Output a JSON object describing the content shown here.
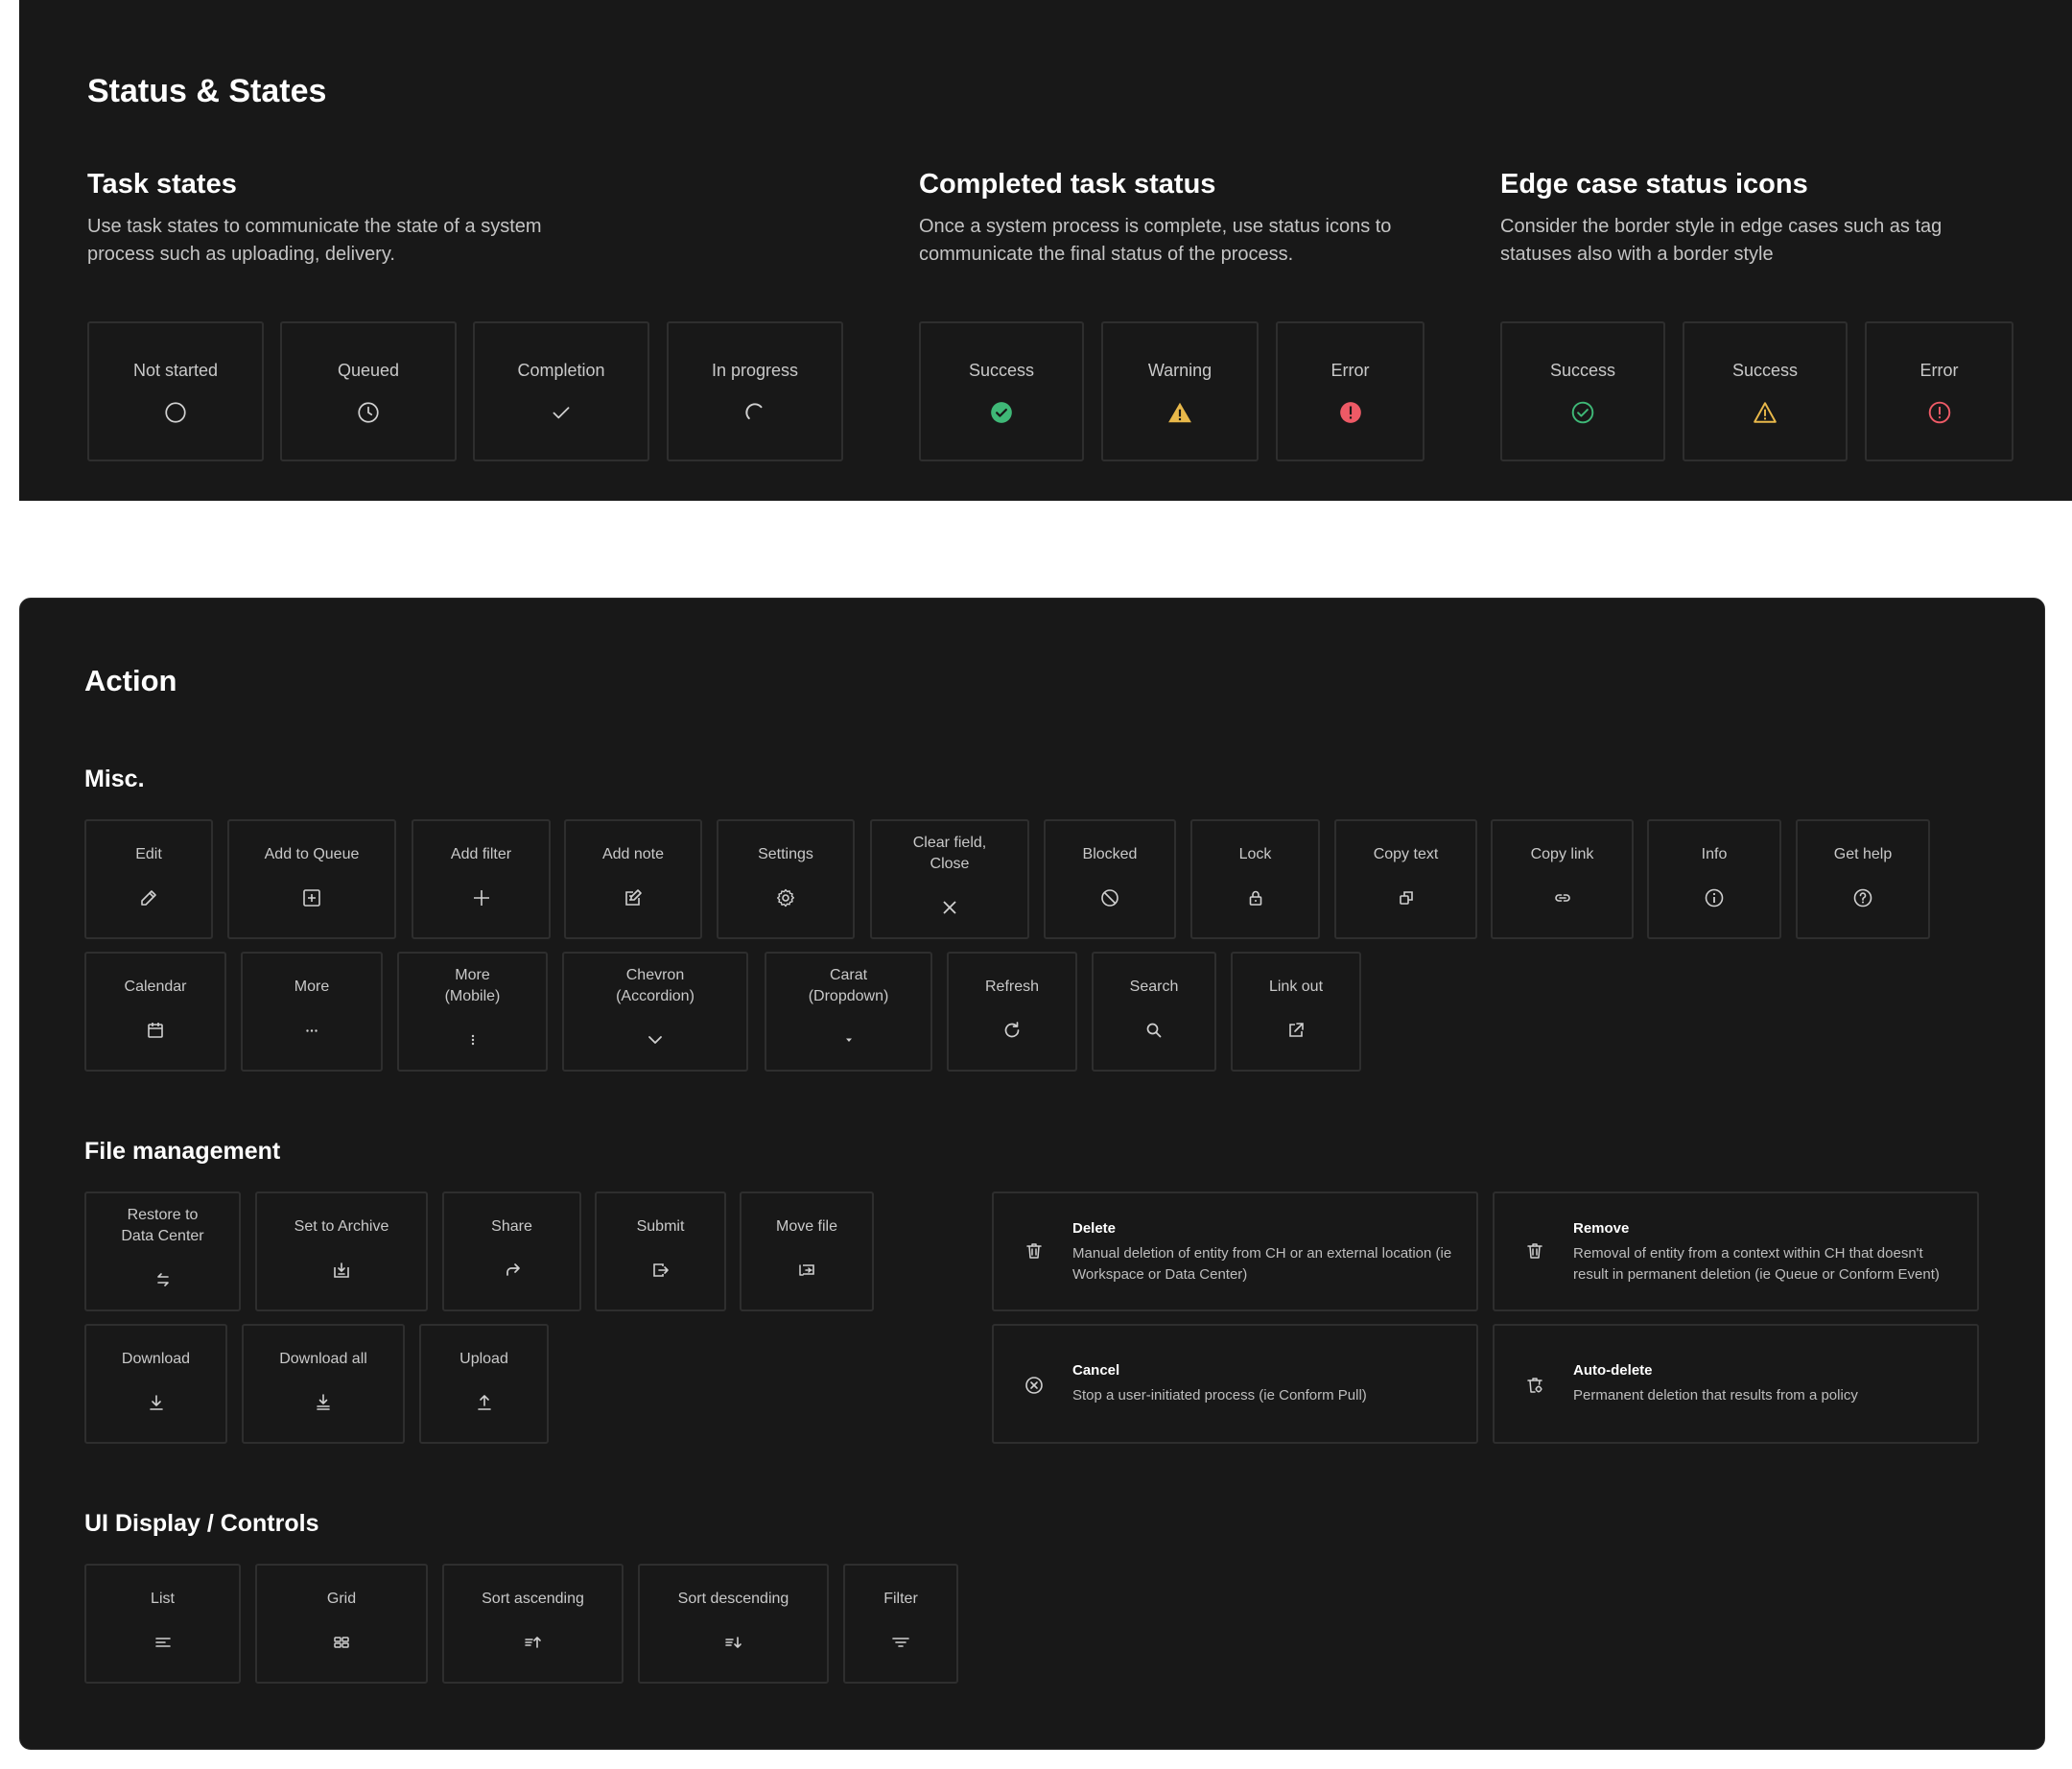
{
  "status": {
    "title": "Status & States",
    "task_states": {
      "heading": "Task states",
      "description": "Use task states to communicate the state of a system process such as uploading, delivery.",
      "items": [
        {
          "label": "Not started",
          "icon": "empty-circle-icon"
        },
        {
          "label": "Queued",
          "icon": "clock-icon"
        },
        {
          "label": "Completion",
          "icon": "check-icon"
        },
        {
          "label": "In progress",
          "icon": "spinner-icon"
        }
      ]
    },
    "completed": {
      "heading": "Completed task status",
      "description": "Once a system process is complete, use status icons to communicate the final status of the process.",
      "items": [
        {
          "label": "Success",
          "icon": "success-filled-icon",
          "color": "#3fb877"
        },
        {
          "label": "Warning",
          "icon": "warning-filled-icon",
          "color": "#e8b84a"
        },
        {
          "label": "Error",
          "icon": "error-filled-icon",
          "color": "#ee5a66"
        }
      ]
    },
    "edge": {
      "heading": "Edge case status icons",
      "description": "Consider the border style in edge cases such as tag statuses also with a border style",
      "items": [
        {
          "label": "Success",
          "icon": "success-outline-icon",
          "color": "#3fb877"
        },
        {
          "label": "Success",
          "icon": "warning-outline-icon",
          "color": "#e8b84a"
        },
        {
          "label": "Error",
          "icon": "error-outline-icon",
          "color": "#ee5a66"
        }
      ]
    }
  },
  "action": {
    "title": "Action",
    "misc": {
      "heading": "Misc.",
      "row1": [
        {
          "label": "Edit",
          "icon": "pencil-icon"
        },
        {
          "label": "Add to Queue",
          "icon": "add-to-queue-icon"
        },
        {
          "label": "Add filter",
          "icon": "plus-icon"
        },
        {
          "label": "Add note",
          "icon": "note-icon"
        },
        {
          "label": "Settings",
          "icon": "gear-icon"
        },
        {
          "label": "Clear field,\nClose",
          "icon": "close-icon"
        },
        {
          "label": "Blocked",
          "icon": "blocked-icon"
        },
        {
          "label": "Lock",
          "icon": "lock-icon"
        },
        {
          "label": "Copy text",
          "icon": "copy-icon"
        },
        {
          "label": "Copy link",
          "icon": "link-icon"
        },
        {
          "label": "Info",
          "icon": "info-icon"
        },
        {
          "label": "Get help",
          "icon": "help-icon"
        }
      ],
      "row2": [
        {
          "label": "Calendar",
          "icon": "calendar-icon"
        },
        {
          "label": "More",
          "icon": "more-horizontal-icon"
        },
        {
          "label": "More\n(Mobile)",
          "icon": "more-vertical-icon"
        },
        {
          "label": "Chevron\n(Accordion)",
          "icon": "chevron-down-icon"
        },
        {
          "label": "Carat\n(Dropdown)",
          "icon": "caret-down-icon"
        },
        {
          "label": "Refresh",
          "icon": "refresh-icon"
        },
        {
          "label": "Search",
          "icon": "search-icon"
        },
        {
          "label": "Link out",
          "icon": "external-link-icon"
        }
      ]
    },
    "file_management": {
      "heading": "File management",
      "row1": [
        {
          "label": "Restore to\nData Center",
          "icon": "restore-icon"
        },
        {
          "label": "Set to Archive",
          "icon": "archive-icon"
        },
        {
          "label": "Share",
          "icon": "share-icon"
        },
        {
          "label": "Submit",
          "icon": "submit-icon"
        },
        {
          "label": "Move file",
          "icon": "move-file-icon"
        }
      ],
      "row2": [
        {
          "label": "Download",
          "icon": "download-icon"
        },
        {
          "label": "Download all",
          "icon": "download-all-icon"
        },
        {
          "label": "Upload",
          "icon": "upload-icon"
        }
      ],
      "cards": [
        {
          "title": "Delete",
          "text": "Manual deletion of entity from CH or an external location (ie Workspace or Data Center)",
          "icon": "trash-icon"
        },
        {
          "title": "Remove",
          "text": "Removal of entity from a context within CH that doesn't result in permanent deletion (ie Queue or Conform Event)",
          "icon": "trash-icon"
        },
        {
          "title": "Cancel",
          "text": "Stop a user-initiated process (ie Conform Pull)",
          "icon": "cancel-icon"
        },
        {
          "title": "Auto-delete",
          "text": "Permanent deletion that results from a policy",
          "icon": "auto-delete-icon"
        }
      ]
    },
    "ui_display": {
      "heading": "UI Display / Controls",
      "items": [
        {
          "label": "List",
          "icon": "list-icon"
        },
        {
          "label": "Grid",
          "icon": "grid-icon"
        },
        {
          "label": "Sort ascending",
          "icon": "sort-ascending-icon"
        },
        {
          "label": "Sort descending",
          "icon": "sort-descending-icon"
        },
        {
          "label": "Filter",
          "icon": "filter-icon"
        }
      ]
    }
  }
}
